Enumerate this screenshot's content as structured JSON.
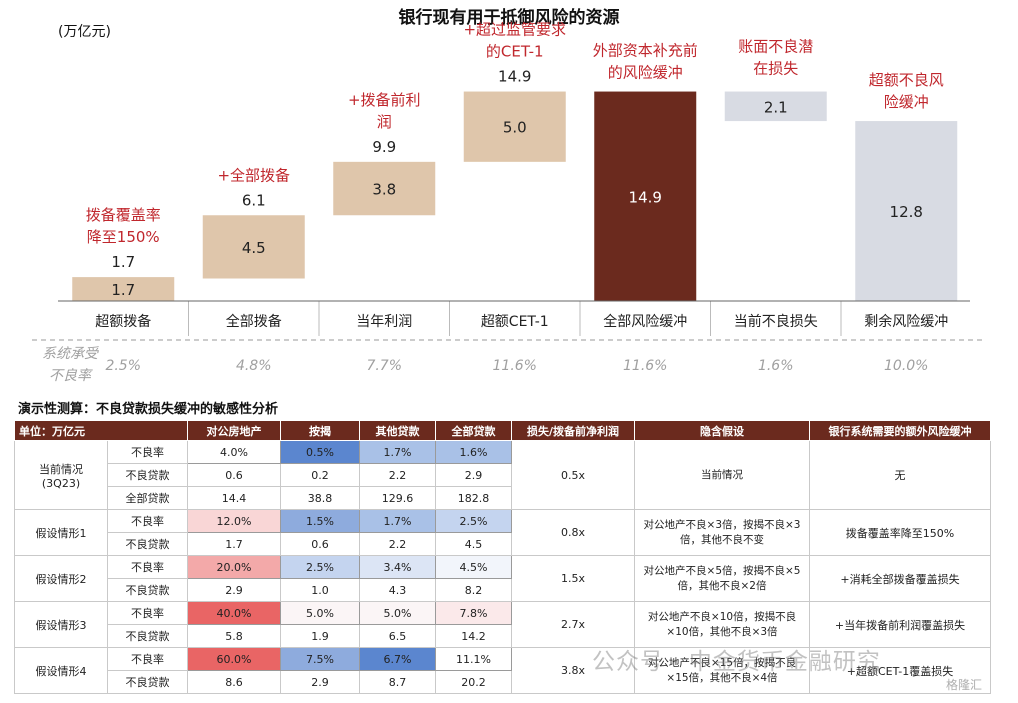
{
  "chart_data": {
    "type": "bar",
    "title": "银行现有用于抵御风险的资源",
    "unit": "(万亿元)",
    "categories": [
      "超额拨备",
      "全部拨备",
      "当年利润",
      "超额CET-1",
      "全部风险缓冲",
      "当前不良损失",
      "剩余风险缓冲"
    ],
    "annotations": [
      "拨备覆盖率降至150%",
      "+全部拨备",
      "+拨备前利润",
      "+超过监管要求的CET-1",
      "外部资本补充前的风险缓冲",
      "账面不良潜在损失",
      "超额不良风险缓冲"
    ],
    "bars": [
      {
        "category": "超额拨备",
        "base": 0,
        "value": 1.7,
        "top_label": "1.7",
        "label": "1.7",
        "kind": "tan"
      },
      {
        "category": "全部拨备",
        "base": 1.6,
        "value": 4.5,
        "top_label": "6.1",
        "label": "4.5",
        "kind": "tan"
      },
      {
        "category": "当年利润",
        "base": 6.1,
        "value": 3.8,
        "top_label": "9.9",
        "label": "3.8",
        "kind": "tan"
      },
      {
        "category": "超额CET-1",
        "base": 9.9,
        "value": 5.0,
        "top_label": "14.9",
        "label": "5.0",
        "kind": "tan"
      },
      {
        "category": "全部风险缓冲",
        "base": 0,
        "value": 14.9,
        "top_label": "",
        "label": "14.9",
        "kind": "brown"
      },
      {
        "category": "当前不良损失",
        "base": 12.8,
        "value": 2.1,
        "top_label": "",
        "label": "2.1",
        "kind": "grey"
      },
      {
        "category": "剩余风险缓冲",
        "base": 0,
        "value": 12.8,
        "top_label": "",
        "label": "12.8",
        "kind": "grey"
      }
    ],
    "ghost_bases": [
      0,
      1.6,
      6.1,
      9.9,
      0,
      0,
      0
    ],
    "ylim": [
      0,
      17.5
    ],
    "npl_row_label": "系统承受不良率",
    "npl_rates": [
      "2.5%",
      "4.8%",
      "7.7%",
      "11.6%",
      "11.6%",
      "1.6%",
      "10.0%"
    ],
    "colors": {
      "tan": "#dfc6ab",
      "brown": "#6b2a1e",
      "grey": "#d8dbe3",
      "annotation": "#c0272d",
      "rate": "#a0a0a0"
    }
  },
  "table": {
    "title": "演示性测算：不良贷款损失缓冲的敏感性分析",
    "headers": [
      "单位：万亿元",
      "",
      "对公房地产",
      "按揭",
      "其他贷款",
      "全部贷款",
      "损失/拨备前净利润",
      "隐含假设",
      "银行系统需要的额外风险缓冲"
    ],
    "groups": [
      {
        "name": "当前情况（3Q23）",
        "ratio": "0.5x",
        "assumption": "当前情况",
        "buffer": "无",
        "rows": [
          {
            "label": "不良率",
            "values": [
              "4.0%",
              "0.5%",
              "1.7%",
              "1.6%"
            ],
            "bg": [
              "#ffffff",
              "#5b86cf",
              "#a9c1e7",
              "#a9c1e7"
            ]
          },
          {
            "label": "不良贷款",
            "values": [
              "0.6",
              "0.2",
              "2.2",
              "2.9"
            ]
          },
          {
            "label": "全部贷款",
            "values": [
              "14.4",
              "38.8",
              "129.6",
              "182.8"
            ]
          }
        ]
      },
      {
        "name": "假设情形1",
        "ratio": "0.8x",
        "assumption": "对公地产不良×3倍，按揭不良×3倍，其他不良不变",
        "buffer": "拨备覆盖率降至150%",
        "rows": [
          {
            "label": "不良率",
            "values": [
              "12.0%",
              "1.5%",
              "1.7%",
              "2.5%"
            ],
            "bg": [
              "#f9d6d6",
              "#8eabdd",
              "#a9c1e7",
              "#c4d4ef"
            ]
          },
          {
            "label": "不良贷款",
            "values": [
              "1.7",
              "0.6",
              "2.2",
              "4.5"
            ]
          }
        ]
      },
      {
        "name": "假设情形2",
        "ratio": "1.5x",
        "assumption": "对公地产不良×5倍，按揭不良×5倍，其他不良×2倍",
        "buffer": "+消耗全部拨备覆盖损失",
        "rows": [
          {
            "label": "不良率",
            "values": [
              "20.0%",
              "2.5%",
              "3.4%",
              "4.5%"
            ],
            "bg": [
              "#f3a9a9",
              "#c4d4ef",
              "#dce5f5",
              "#f2f5fb"
            ]
          },
          {
            "label": "不良贷款",
            "values": [
              "2.9",
              "1.0",
              "4.3",
              "8.2"
            ]
          }
        ]
      },
      {
        "name": "假设情形3",
        "ratio": "2.7x",
        "assumption": "对公地产不良×10倍，按揭不良×10倍，其他不良×3倍",
        "buffer": "+当年拨备前利润覆盖损失",
        "rows": [
          {
            "label": "不良率",
            "values": [
              "40.0%",
              "5.0%",
              "5.0%",
              "7.8%"
            ],
            "bg": [
              "#e96565",
              "#fbf5f6",
              "#fbf5f6",
              "#fbe9ea"
            ]
          },
          {
            "label": "不良贷款",
            "values": [
              "5.8",
              "1.9",
              "6.5",
              "14.2"
            ]
          }
        ]
      },
      {
        "name": "假设情形4",
        "ratio": "3.8x",
        "assumption": "对公地产不良×15倍，按揭不良×15倍，其他不良×4倍",
        "buffer": "+超额CET-1覆盖损失",
        "rows": [
          {
            "label": "不良率",
            "values": [
              "60.0%",
              "7.5%",
              "6.7%",
              "11.1%"
            ],
            "bg": [
              "#e96565",
              "#8eabdd",
              "#5b86cf",
              "#ffffff"
            ]
          },
          {
            "label": "不良贷款",
            "values": [
              "8.6",
              "2.9",
              "8.7",
              "20.2"
            ]
          }
        ]
      }
    ]
  },
  "watermark": "公众号 · 中金货币金融研究",
  "watermark_badge": "格隆汇"
}
